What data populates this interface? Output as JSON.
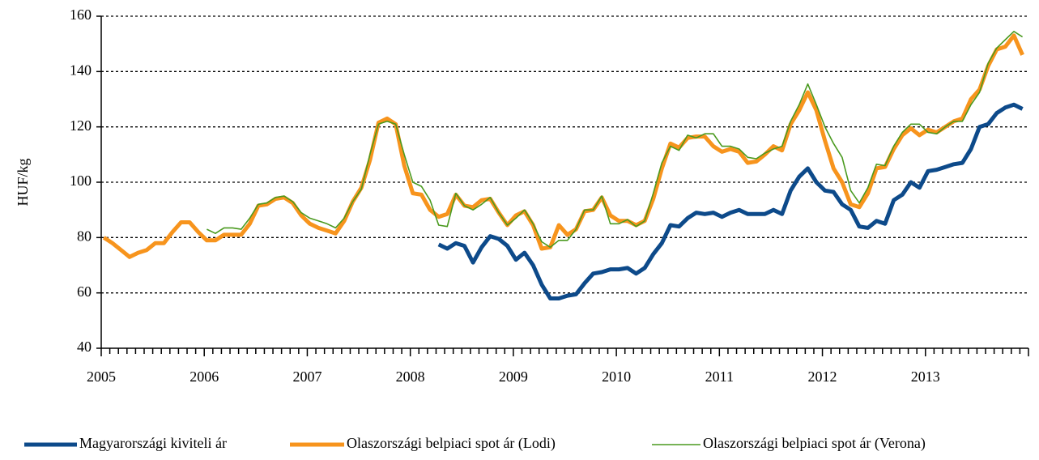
{
  "chart_data": {
    "type": "line",
    "y_label": "HUF/kg",
    "categories": [
      "2005",
      null,
      null,
      null,
      null,
      null,
      null,
      null,
      null,
      null,
      null,
      null,
      "2006",
      null,
      null,
      null,
      null,
      null,
      null,
      null,
      null,
      null,
      null,
      null,
      "2007",
      null,
      null,
      null,
      null,
      null,
      null,
      null,
      null,
      null,
      null,
      null,
      "2008",
      null,
      null,
      null,
      null,
      null,
      null,
      null,
      null,
      null,
      null,
      null,
      "2009",
      null,
      null,
      null,
      null,
      null,
      null,
      null,
      null,
      null,
      null,
      null,
      "2010",
      null,
      null,
      null,
      null,
      null,
      null,
      null,
      null,
      null,
      null,
      null,
      "2011",
      null,
      null,
      null,
      null,
      null,
      null,
      null,
      null,
      null,
      null,
      null,
      "2012",
      null,
      null,
      null,
      null,
      null,
      null,
      null,
      null,
      null,
      null,
      null,
      "2013",
      null,
      null,
      null,
      null,
      null,
      null,
      null,
      null,
      null,
      null,
      null
    ],
    "series": [
      {
        "name": "Magyarországi kiviteli ár",
        "color": "#0d4a8a",
        "width": 5,
        "values": [
          null,
          null,
          null,
          null,
          null,
          null,
          null,
          null,
          null,
          null,
          null,
          null,
          null,
          null,
          null,
          null,
          null,
          null,
          null,
          null,
          null,
          null,
          null,
          null,
          null,
          null,
          null,
          null,
          null,
          null,
          null,
          null,
          null,
          null,
          null,
          null,
          null,
          null,
          null,
          77.5,
          76,
          78,
          77,
          71,
          76.5,
          80.5,
          79.5,
          77,
          72,
          74.5,
          70,
          63,
          58,
          58,
          59,
          59.5,
          63.5,
          67,
          67.5,
          68.5,
          68.5,
          69,
          67,
          69,
          74,
          78,
          84.5,
          84,
          87,
          89,
          88.5,
          89,
          87.5,
          89,
          90,
          88.5,
          88.5,
          88.5,
          90,
          88.5,
          97,
          102,
          105,
          100,
          97,
          96.5,
          92,
          90,
          84,
          83.5,
          86,
          85,
          93.5,
          95.5,
          100,
          98,
          104,
          104.5,
          105.5,
          106.5,
          107,
          112,
          120,
          121,
          125,
          127,
          128,
          126.5
        ]
      },
      {
        "name": "Olaszországi belpiaci spot ár (Lodi)",
        "color": "#f7941d",
        "width": 5,
        "values": [
          80,
          78,
          75.5,
          73,
          74.5,
          75.5,
          78,
          78,
          82,
          85.5,
          85.5,
          82,
          79,
          79,
          81,
          81,
          81,
          85,
          91.5,
          92,
          94,
          94.5,
          92.5,
          88,
          85,
          83.5,
          82.5,
          81.5,
          86,
          93,
          98,
          108,
          121.5,
          123,
          121,
          106,
          96,
          95.5,
          90,
          87.5,
          88.5,
          95.5,
          91.5,
          91,
          93.5,
          94,
          89,
          84.5,
          88,
          89.5,
          84.5,
          76,
          76.5,
          84.5,
          81,
          83,
          89.5,
          90,
          94.5,
          88,
          86,
          86,
          84.5,
          86,
          94,
          105,
          114,
          112.5,
          116,
          116.5,
          116.5,
          113,
          111,
          112,
          111,
          107,
          107.5,
          110,
          113,
          111.5,
          121,
          126,
          132.5,
          126,
          115,
          105,
          100,
          92,
          91,
          96,
          105,
          105.5,
          112,
          117,
          119.5,
          117,
          119,
          118,
          120,
          122,
          123,
          130,
          133.5,
          142,
          148,
          149,
          153,
          146
        ]
      },
      {
        "name": "Olaszországi belpiaci spot ár (Verona)",
        "color": "#4a9a1f",
        "width": 1.6,
        "values": [
          null,
          null,
          null,
          null,
          null,
          null,
          null,
          null,
          null,
          null,
          null,
          null,
          83,
          81.5,
          83.5,
          83.5,
          83,
          87,
          92,
          92.5,
          94.5,
          95,
          93,
          89,
          87,
          86,
          85,
          83.5,
          87,
          93,
          97.5,
          110,
          121,
          122,
          121,
          110,
          100,
          98.5,
          93.5,
          84.5,
          84,
          96,
          91.5,
          90,
          92,
          94.5,
          89,
          84.5,
          87,
          90,
          85,
          78.5,
          76.5,
          79,
          79,
          83,
          90,
          90,
          95,
          85,
          85,
          86.5,
          84,
          86,
          96,
          107,
          113,
          111.5,
          117,
          116,
          117.5,
          117.5,
          113,
          113,
          112,
          109,
          108.5,
          110.5,
          112,
          113,
          122,
          128,
          135.5,
          128,
          120,
          114,
          109,
          97,
          92.5,
          98,
          106.5,
          106,
          113,
          118,
          121,
          121,
          118,
          117.5,
          120,
          122,
          122,
          128,
          132.5,
          143,
          148.5,
          151.5,
          154.5,
          152.5
        ]
      }
    ],
    "ylim": [
      40,
      160
    ],
    "yticks": [
      40,
      60,
      80,
      100,
      120,
      140,
      160
    ],
    "grid": true,
    "legend": "bottom"
  }
}
